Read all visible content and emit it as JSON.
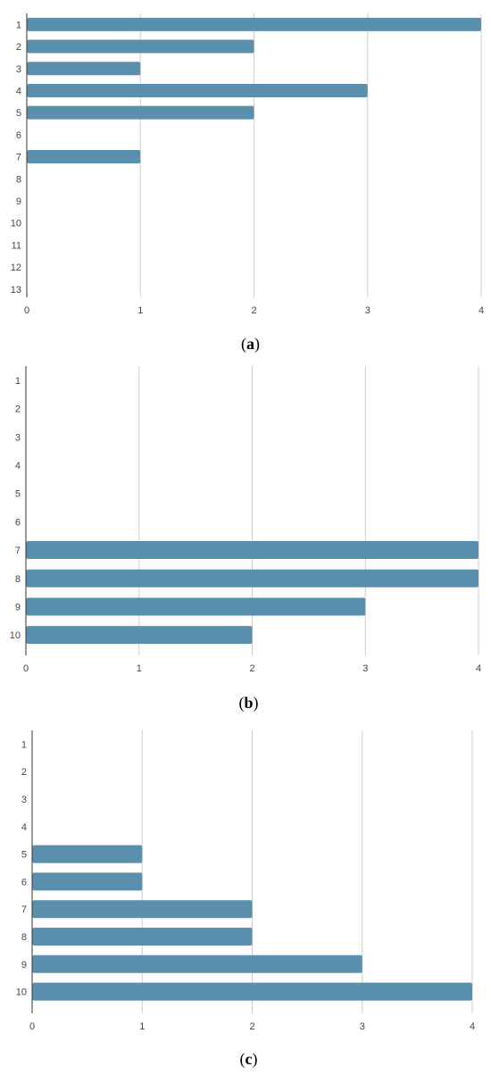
{
  "colors": {
    "bar": "#5a8fae",
    "grid": "#cfcfcf",
    "axis": "#333333",
    "text": "#444444"
  },
  "chart_data": [
    {
      "type": "bar",
      "orientation": "horizontal",
      "panel_label": "a",
      "categories": [
        "1",
        "2",
        "3",
        "4",
        "5",
        "6",
        "7",
        "8",
        "9",
        "10",
        "11",
        "12",
        "13"
      ],
      "values": [
        4,
        2,
        1,
        3,
        2,
        0,
        1,
        0,
        0,
        0,
        0,
        0,
        0
      ],
      "xlim": [
        0,
        4
      ],
      "xticks": [
        "0",
        "1",
        "2",
        "3",
        "4"
      ],
      "grid": "vertical"
    },
    {
      "type": "bar",
      "orientation": "horizontal",
      "panel_label": "b",
      "categories": [
        "1",
        "2",
        "3",
        "4",
        "5",
        "6",
        "7",
        "8",
        "9",
        "10"
      ],
      "values": [
        0,
        0,
        0,
        0,
        0,
        0,
        4,
        4,
        3,
        2
      ],
      "xlim": [
        0,
        4
      ],
      "xticks": [
        "0",
        "1",
        "2",
        "3",
        "4"
      ],
      "grid": "vertical"
    },
    {
      "type": "bar",
      "orientation": "horizontal",
      "panel_label": "c",
      "categories": [
        "1",
        "2",
        "3",
        "4",
        "5",
        "6",
        "7",
        "8",
        "9",
        "10"
      ],
      "values": [
        0,
        0,
        0,
        0,
        1,
        1,
        2,
        2,
        3,
        4
      ],
      "xlim": [
        0,
        4
      ],
      "xticks": [
        "0",
        "1",
        "2",
        "3",
        "4"
      ],
      "grid": "vertical"
    }
  ]
}
